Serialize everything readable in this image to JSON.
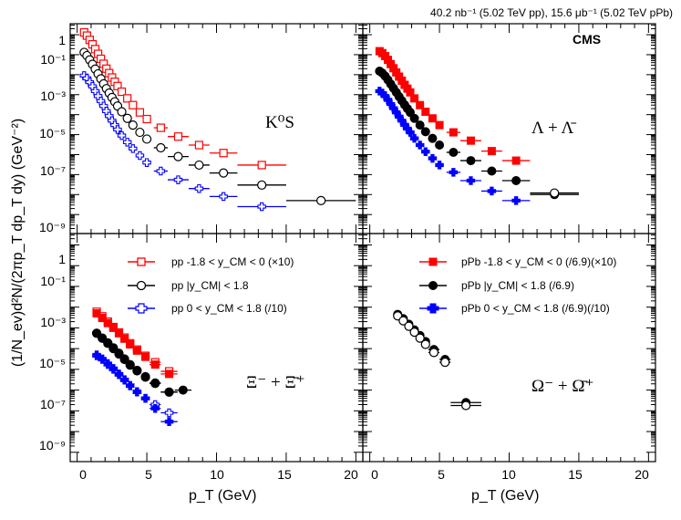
{
  "luminosity_note": "40.2 nb⁻¹ (5.02 TeV pp), 15.6 μb⁻¹ (5.02 TeV pPb)",
  "experiment_label": "CMS",
  "y_axis_title": "(1/N_ev)d²N/(2πp_T dp_T dy) (GeV⁻²)",
  "x_axis_title": "p_T (GeV)",
  "x_ticks": [
    "0",
    "5",
    "10",
    "15",
    "20"
  ],
  "y_ticks": [
    "1",
    "10⁻¹",
    "10⁻³",
    "10⁻⁵",
    "10⁻⁷",
    "10⁻⁹"
  ],
  "colors": {
    "pp_fwd": "#ff0000",
    "pp_mid": "#000000",
    "pp_bwd": "#0000ff",
    "pPb_fwd": "#ff0000",
    "pPb_mid": "#000000",
    "pPb_bwd": "#0000ff"
  },
  "legend_pp": {
    "fwd": "pp -1.8 < y_CM < 0 (×10)",
    "mid": "pp |y_CM| < 1.8",
    "bwd": "pp 0 < y_CM < 1.8 (/10)"
  },
  "legend_pPb": {
    "fwd": "pPb -1.8 < y_CM < 0 (/6.9)(×10)",
    "mid": "pPb |y_CM| < 1.8 (/6.9)",
    "bwd": "pPb 0 < y_CM < 1.8 (/6.9)(/10)"
  },
  "chart_data": [
    {
      "type": "scatter",
      "panel": "pp",
      "particle": "K0S",
      "particle_label": "K⁰S",
      "xlabel": "p_T (GeV)",
      "ylabel": "(1/N_ev)d²N/(2πp_T dp_T dy) (GeV⁻²)",
      "xlim": [
        -0.5,
        20.5
      ],
      "ylim": [
        1e-10,
        5
      ],
      "y_scale": "log",
      "series": [
        {
          "name": "pp -1.8 < y_CM < 0 (×10)",
          "color": "#ff0000",
          "marker": "open-square",
          "x": [
            0.5,
            0.7,
            0.9,
            1.1,
            1.3,
            1.5,
            1.7,
            1.9,
            2.1,
            2.3,
            2.5,
            2.7,
            2.9,
            3.2,
            3.6,
            4.0,
            4.5,
            5.0,
            6.0,
            7.25,
            8.75,
            10.5,
            13.25
          ],
          "xerr": [
            0.1,
            0.1,
            0.1,
            0.1,
            0.1,
            0.1,
            0.1,
            0.1,
            0.1,
            0.1,
            0.1,
            0.1,
            0.1,
            0.2,
            0.2,
            0.2,
            0.25,
            0.25,
            0.5,
            0.75,
            0.75,
            1.0,
            1.75
          ],
          "y": [
            1.3,
            0.9,
            0.55,
            0.33,
            0.19,
            0.11,
            0.062,
            0.035,
            0.02,
            0.012,
            0.0072,
            0.0044,
            0.0027,
            0.0014,
            0.00065,
            0.0003,
            0.00013,
            6e-05,
            2.2e-05,
            8e-06,
            3e-06,
            1.2e-06,
            3e-07
          ]
        },
        {
          "name": "pp |y_CM| < 1.8",
          "color": "#000000",
          "marker": "open-circle",
          "x": [
            0.5,
            0.7,
            0.9,
            1.1,
            1.3,
            1.5,
            1.7,
            1.9,
            2.1,
            2.3,
            2.5,
            2.7,
            2.9,
            3.2,
            3.6,
            4.0,
            4.5,
            5.0,
            6.0,
            7.25,
            8.75,
            10.5,
            13.25,
            17.5
          ],
          "xerr": [
            0.1,
            0.1,
            0.1,
            0.1,
            0.1,
            0.1,
            0.1,
            0.1,
            0.1,
            0.1,
            0.1,
            0.1,
            0.1,
            0.2,
            0.2,
            0.2,
            0.25,
            0.25,
            0.5,
            0.75,
            0.75,
            1.0,
            1.75,
            2.5
          ],
          "y": [
            0.13,
            0.09,
            0.055,
            0.033,
            0.019,
            0.011,
            0.0062,
            0.0035,
            0.002,
            0.0012,
            0.00072,
            0.00044,
            0.00027,
            0.00014,
            6.5e-05,
            3e-05,
            1.3e-05,
            6e-06,
            2.2e-06,
            8e-07,
            3e-07,
            1.2e-07,
            3e-08,
            5e-09
          ]
        },
        {
          "name": "pp 0 < y_CM < 1.8 (/10)",
          "color": "#0000ff",
          "marker": "open-cross",
          "x": [
            0.5,
            0.7,
            0.9,
            1.1,
            1.3,
            1.5,
            1.7,
            1.9,
            2.1,
            2.3,
            2.5,
            2.7,
            2.9,
            3.2,
            3.6,
            4.0,
            4.5,
            5.0,
            6.0,
            7.25,
            8.75,
            10.5,
            13.25
          ],
          "xerr": [
            0.1,
            0.1,
            0.1,
            0.1,
            0.1,
            0.1,
            0.1,
            0.1,
            0.1,
            0.1,
            0.1,
            0.1,
            0.1,
            0.2,
            0.2,
            0.2,
            0.25,
            0.25,
            0.5,
            0.75,
            0.75,
            1.0,
            1.75
          ],
          "y": [
            0.009,
            0.0065,
            0.0042,
            0.0026,
            0.0015,
            0.00085,
            0.00048,
            0.00027,
            0.00015,
            8.5e-05,
            5e-05,
            3e-05,
            1.8e-05,
            9e-06,
            4.2e-06,
            2e-06,
            9e-07,
            4e-07,
            1.5e-07,
            5.5e-08,
            2e-08,
            8e-09,
            2.5e-09
          ]
        }
      ]
    },
    {
      "type": "scatter",
      "panel": "pPb",
      "particle": "Lambda",
      "particle_label": "Λ + Λ̄",
      "xlabel": "p_T (GeV)",
      "ylabel": "(1/N_ev)d²N/(2πp_T dp_T dy) (GeV⁻²)",
      "xlim": [
        -0.5,
        20.5
      ],
      "ylim": [
        1e-10,
        5
      ],
      "y_scale": "log",
      "series": [
        {
          "name": "pPb -1.8 < y_CM < 0 (/6.9)(×10)",
          "color": "#ff0000",
          "marker": "filled-square",
          "x": [
            0.7,
            0.9,
            1.1,
            1.3,
            1.5,
            1.7,
            1.9,
            2.1,
            2.3,
            2.5,
            2.7,
            2.9,
            3.2,
            3.6,
            4.0,
            4.5,
            5.0,
            6.0,
            7.25,
            8.75,
            10.5
          ],
          "xerr": [
            0.1,
            0.1,
            0.1,
            0.1,
            0.1,
            0.1,
            0.1,
            0.1,
            0.1,
            0.1,
            0.1,
            0.1,
            0.2,
            0.2,
            0.2,
            0.25,
            0.25,
            0.5,
            0.75,
            0.75,
            1.0
          ],
          "y": [
            0.15,
            0.12,
            0.085,
            0.055,
            0.034,
            0.021,
            0.013,
            0.008,
            0.005,
            0.0031,
            0.002,
            0.0013,
            0.00065,
            0.0003,
            0.00014,
            6.5e-05,
            3e-05,
            1.3e-05,
            5e-06,
            1.5e-06,
            5e-07
          ]
        },
        {
          "name": "pPb |y_CM| < 1.8 (/6.9)",
          "color": "#000000",
          "marker": "filled-circle",
          "x": [
            0.7,
            0.9,
            1.1,
            1.3,
            1.5,
            1.7,
            1.9,
            2.1,
            2.3,
            2.5,
            2.7,
            2.9,
            3.2,
            3.6,
            4.0,
            4.5,
            5.0,
            6.0,
            7.25,
            8.75,
            10.5,
            13.25
          ],
          "xerr": [
            0.1,
            0.1,
            0.1,
            0.1,
            0.1,
            0.1,
            0.1,
            0.1,
            0.1,
            0.1,
            0.1,
            0.1,
            0.2,
            0.2,
            0.2,
            0.25,
            0.25,
            0.5,
            0.75,
            0.75,
            1.0,
            1.75
          ],
          "y": [
            0.015,
            0.012,
            0.0085,
            0.0055,
            0.0034,
            0.0021,
            0.0013,
            0.0008,
            0.0005,
            0.00031,
            0.0002,
            0.00013,
            6.5e-05,
            3e-05,
            1.4e-05,
            6.5e-06,
            3e-06,
            1.3e-06,
            5e-07,
            1.5e-07,
            5e-08,
            1e-08
          ]
        },
        {
          "name": "pPb 0 < y_CM < 1.8 (/6.9)(/10)",
          "color": "#0000ff",
          "marker": "filled-cross",
          "x": [
            0.7,
            0.9,
            1.1,
            1.3,
            1.5,
            1.7,
            1.9,
            2.1,
            2.3,
            2.5,
            2.7,
            2.9,
            3.2,
            3.6,
            4.0,
            4.5,
            5.0,
            6.0,
            7.25,
            8.75,
            10.5
          ],
          "xerr": [
            0.1,
            0.1,
            0.1,
            0.1,
            0.1,
            0.1,
            0.1,
            0.1,
            0.1,
            0.1,
            0.1,
            0.1,
            0.2,
            0.2,
            0.2,
            0.25,
            0.25,
            0.5,
            0.75,
            0.75,
            1.0
          ],
          "y": [
            0.0015,
            0.0012,
            0.00085,
            0.00055,
            0.00034,
            0.00021,
            0.00013,
            8e-05,
            5e-05,
            3.1e-05,
            2e-05,
            1.3e-05,
            6.5e-06,
            3e-06,
            1.4e-06,
            6.5e-07,
            3e-07,
            1.3e-07,
            5e-08,
            1.5e-08,
            5e-09
          ]
        },
        {
          "name": "pp |y_CM| < 1.8",
          "color": "#000000",
          "marker": "open-circle",
          "x": [
            13.25
          ],
          "xerr": [
            1.75
          ],
          "y": [
            1.2e-08
          ]
        }
      ]
    },
    {
      "type": "scatter",
      "panel": "pp",
      "particle": "Xi",
      "particle_label": "Ξ⁻ + Ξ̄⁺",
      "xlabel": "p_T (GeV)",
      "ylabel": "(1/N_ev)d²N/(2πp_T dp_T dy) (GeV⁻²)",
      "xlim": [
        -0.5,
        20.5
      ],
      "ylim": [
        1e-10,
        5
      ],
      "y_scale": "log",
      "series": [
        {
          "name": "pp -1.8 < y_CM < 0 (×10)",
          "color": "#ff0000",
          "marker": "open-square",
          "x": [
            1.4,
            1.8,
            2.2,
            2.6,
            3.0,
            3.4,
            3.8,
            4.3,
            4.9,
            5.6,
            6.6
          ],
          "xerr": [
            0.2,
            0.2,
            0.2,
            0.2,
            0.2,
            0.2,
            0.2,
            0.3,
            0.3,
            0.4,
            0.6
          ],
          "y": [
            0.0006,
            0.00036,
            0.0002,
            0.00011,
            6e-05,
            3.4e-05,
            1.8e-05,
            9e-06,
            4.5e-06,
            2.2e-06,
            8e-07
          ]
        },
        {
          "name": "pp |y_CM| < 1.8",
          "color": "#000000",
          "marker": "open-circle",
          "x": [
            1.4,
            1.8,
            2.2,
            2.6,
            3.0,
            3.4,
            3.8,
            4.3,
            4.9,
            5.6,
            6.6
          ],
          "xerr": [
            0.2,
            0.2,
            0.2,
            0.2,
            0.2,
            0.2,
            0.2,
            0.3,
            0.3,
            0.4,
            0.6
          ],
          "y": [
            5.5e-05,
            3.2e-05,
            1.8e-05,
            1e-05,
            5.5e-06,
            3e-06,
            1.6e-06,
            8.5e-07,
            4.2e-07,
            2.1e-07,
            8e-08
          ]
        },
        {
          "name": "pp 0 < y_CM < 1.8 (/10)",
          "color": "#0000ff",
          "marker": "open-cross",
          "x": [
            1.4,
            1.8,
            2.2,
            2.6,
            3.0,
            3.4,
            3.8,
            4.3,
            4.9,
            5.6,
            6.6
          ],
          "xerr": [
            0.2,
            0.2,
            0.2,
            0.2,
            0.2,
            0.2,
            0.2,
            0.3,
            0.3,
            0.4,
            0.6
          ],
          "y": [
            4.5e-06,
            3e-06,
            1.7e-06,
            1e-06,
            5.5e-07,
            3e-07,
            1.6e-07,
            8e-08,
            4e-08,
            2e-08,
            8e-09
          ]
        },
        {
          "name": "pPb -1.8 < y_CM < 0 (/6.9)(×10)",
          "color": "#ff0000",
          "marker": "filled-square",
          "x": [
            1.4,
            1.8,
            2.2,
            2.6,
            3.0,
            3.4,
            3.8,
            4.3,
            4.9,
            5.6,
            6.6
          ],
          "xerr": [
            0.2,
            0.2,
            0.2,
            0.2,
            0.2,
            0.2,
            0.2,
            0.3,
            0.3,
            0.4,
            0.6
          ],
          "y": [
            0.0005,
            0.0003,
            0.00017,
            0.0001,
            5.5e-05,
            3e-05,
            1.6e-05,
            8e-06,
            4e-06,
            1.7e-06,
            6e-07
          ]
        },
        {
          "name": "pPb |y_CM| < 1.8 (/6.9)",
          "color": "#000000",
          "marker": "filled-circle",
          "x": [
            1.4,
            1.8,
            2.2,
            2.6,
            3.0,
            3.4,
            3.8,
            4.3,
            4.9,
            5.6,
            6.6,
            7.6
          ],
          "xerr": [
            0.2,
            0.2,
            0.2,
            0.2,
            0.2,
            0.2,
            0.2,
            0.3,
            0.3,
            0.4,
            0.6,
            0.6
          ],
          "y": [
            5.5e-05,
            3.2e-05,
            1.9e-05,
            1.1e-05,
            6e-06,
            3.2e-06,
            1.7e-06,
            9e-07,
            4.5e-07,
            2.2e-07,
            8e-08,
            1e-07
          ]
        },
        {
          "name": "pPb 0 < y_CM < 1.8 (/6.9)(/10)",
          "color": "#0000ff",
          "marker": "filled-cross",
          "x": [
            1.4,
            1.8,
            2.2,
            2.6,
            3.0,
            3.4,
            3.8,
            4.3,
            4.9,
            5.6,
            6.6
          ],
          "xerr": [
            0.2,
            0.2,
            0.2,
            0.2,
            0.2,
            0.2,
            0.2,
            0.3,
            0.3,
            0.4,
            0.6
          ],
          "y": [
            5e-06,
            3.2e-06,
            1.9e-06,
            1.1e-06,
            6e-07,
            3.2e-07,
            1.7e-07,
            8.5e-08,
            4e-08,
            1.3e-08,
            3e-09
          ]
        }
      ]
    },
    {
      "type": "scatter",
      "panel": "pPb",
      "particle": "Omega",
      "particle_label": "Ω⁻ + Ω̄⁺",
      "xlabel": "p_T (GeV)",
      "ylabel": "(1/N_ev)d²N/(2πp_T dp_T dy) (GeV⁻²)",
      "xlim": [
        -0.5,
        20.5
      ],
      "ylim": [
        1e-10,
        5
      ],
      "y_scale": "log",
      "series": [
        {
          "name": "pPb |y_CM| < 1.8 (/6.9)",
          "color": "#000000",
          "marker": "filled-circle",
          "x": [
            2.0,
            2.4,
            2.8,
            3.2,
            3.6,
            4.0,
            4.6,
            5.4,
            6.9
          ],
          "xerr": [
            0.2,
            0.2,
            0.2,
            0.2,
            0.2,
            0.2,
            0.4,
            0.4,
            1.1
          ],
          "y": [
            0.00045,
            0.00028,
            0.00015,
            8e-05,
            4.3e-05,
            2.2e-05,
            9e-06,
            3e-06,
            2.5e-08
          ]
        },
        {
          "name": "pp |y_CM| < 1.8",
          "color": "#000000",
          "marker": "open-circle",
          "x": [
            2.0,
            2.4,
            2.8,
            3.2,
            3.6,
            4.0,
            4.6,
            5.4,
            6.9
          ],
          "xerr": [
            0.2,
            0.2,
            0.2,
            0.2,
            0.2,
            0.2,
            0.4,
            0.4,
            1.1
          ],
          "y": [
            0.00038,
            0.00022,
            0.00012,
            6.2e-05,
            3.2e-05,
            1.6e-05,
            6.5e-06,
            2.2e-06,
            1.8e-08
          ]
        }
      ]
    }
  ]
}
